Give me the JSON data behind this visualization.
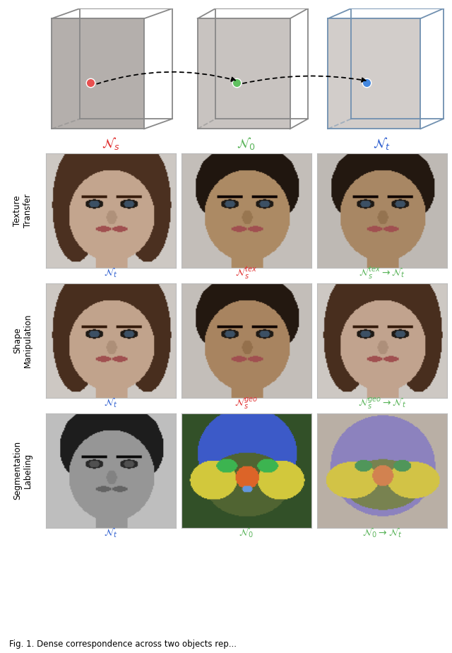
{
  "bg_color": "#ffffff",
  "cube_label_texts": [
    {
      "text": "$\\mathcal{N}_s$",
      "color": "#e03030"
    },
    {
      "text": "$\\mathcal{N}_0$",
      "color": "#5ab45a"
    },
    {
      "text": "$\\mathcal{N}_t$",
      "color": "#3060d0"
    }
  ],
  "row_labels": [
    "Texture\nTransfer",
    "Shape\nManipulation",
    "Segmentation\nLabeling"
  ],
  "row_col_labels": [
    [
      {
        "text": "$\\mathcal{N}_t$",
        "color": "#3060d0"
      },
      {
        "text": "$\\mathcal{N}_s^{tex}$",
        "color": "#e03030"
      },
      {
        "text": "$\\mathcal{N}_s^{tex} \\rightarrow \\mathcal{N}_t$",
        "color": "#5ab45a"
      }
    ],
    [
      {
        "text": "$\\mathcal{N}_t$",
        "color": "#3060d0"
      },
      {
        "text": "$\\mathcal{N}_s^{geo}$",
        "color": "#e03030"
      },
      {
        "text": "$\\mathcal{N}_s^{geo} \\rightarrow \\mathcal{N}_t$",
        "color": "#5ab45a"
      }
    ],
    [
      {
        "text": "$\\mathcal{N}_t$",
        "color": "#3060d0"
      },
      {
        "text": "$\\mathcal{N}_0$",
        "color": "#5ab45a"
      },
      {
        "text": "$\\mathcal{N}_0 \\rightarrow \\mathcal{N}_t$",
        "color": "#5ab45a"
      }
    ]
  ],
  "dot_colors": [
    "#e85050",
    "#60c060",
    "#4488e0"
  ],
  "caption": "Fig. 1. Dense correspondence across two objects rep..."
}
